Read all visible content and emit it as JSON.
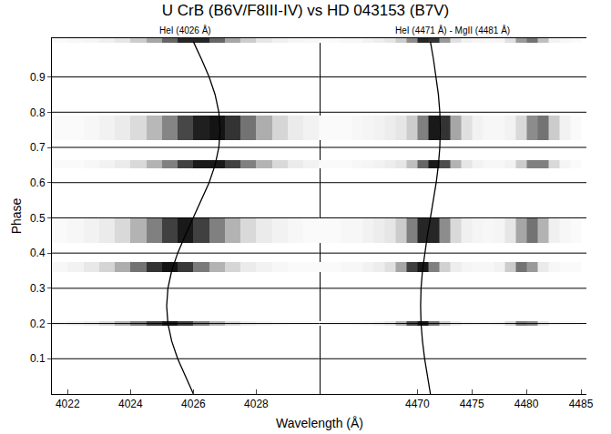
{
  "chart_data": {
    "type": "heatmap",
    "title": "U CrB (B6V/F8III-IV) vs HD 043153 (B7V)",
    "y_label": "Phase",
    "x_label": "Wavelength (Å)",
    "ylim": [
      0,
      1.01
    ],
    "yticks": [
      0.1,
      0.2,
      0.3,
      0.4,
      0.5,
      0.6,
      0.7,
      0.8,
      0.9
    ],
    "grid": true,
    "colors": [
      "#ffffff",
      "#000000"
    ],
    "zlim": [
      0,
      1
    ],
    "panels": [
      {
        "title": "HeI (4026 Å)",
        "xlim": [
          4021.5,
          4030
        ],
        "xticks": [
          4022,
          4024,
          4026,
          4028
        ],
        "x": [
          4021.5,
          4022,
          4022.5,
          4023,
          4023.5,
          4024,
          4024.5,
          4025,
          4025.5,
          4026,
          4026.5,
          4027,
          4027.5,
          4028,
          4028.5,
          4029,
          4029.5,
          4030
        ],
        "bands": [
          {
            "phase": [
              0.193,
              0.207
            ],
            "values": [
              0.03,
              0.05,
              0.08,
              0.15,
              0.3,
              0.5,
              0.75,
              0.9,
              0.75,
              0.5,
              0.3,
              0.15,
              0.08,
              0.05,
              0.03,
              0.02,
              0.02
            ]
          },
          {
            "phase": [
              0.345,
              0.375
            ],
            "values": [
              0.03,
              0.05,
              0.09,
              0.17,
              0.32,
              0.55,
              0.8,
              0.92,
              0.78,
              0.52,
              0.3,
              0.16,
              0.08,
              0.05,
              0.03,
              0.02,
              0.02
            ]
          },
          {
            "phase": [
              0.43,
              0.5
            ],
            "values": [
              0.02,
              0.03,
              0.05,
              0.08,
              0.15,
              0.3,
              0.5,
              0.75,
              0.9,
              0.75,
              0.5,
              0.3,
              0.15,
              0.08,
              0.05,
              0.03,
              0.02
            ]
          },
          {
            "phase": [
              0.64,
              0.665
            ],
            "values": [
              0.02,
              0.02,
              0.03,
              0.05,
              0.08,
              0.15,
              0.3,
              0.5,
              0.75,
              0.9,
              0.9,
              0.75,
              0.5,
              0.3,
              0.15,
              0.08,
              0.05
            ]
          },
          {
            "phase": [
              0.72,
              0.79
            ],
            "values": [
              0.02,
              0.02,
              0.03,
              0.05,
              0.08,
              0.14,
              0.28,
              0.48,
              0.72,
              0.88,
              0.92,
              0.8,
              0.55,
              0.32,
              0.16,
              0.08,
              0.05
            ]
          },
          {
            "phase": [
              0.997,
              1.01
            ],
            "values": [
              0.02,
              0.03,
              0.04,
              0.06,
              0.1,
              0.2,
              0.35,
              0.6,
              0.85,
              0.85,
              0.6,
              0.35,
              0.2,
              0.1,
              0.06,
              0.04,
              0.03
            ]
          }
        ],
        "curve": {
          "color": "#000000",
          "phase": [
            0,
            0.05,
            0.1,
            0.15,
            0.2,
            0.25,
            0.3,
            0.35,
            0.4,
            0.45,
            0.5,
            0.55,
            0.6,
            0.65,
            0.7,
            0.75,
            0.8,
            0.85,
            0.9,
            0.95,
            1
          ],
          "x": [
            4026.0,
            4025.74,
            4025.5,
            4025.31,
            4025.19,
            4025.15,
            4025.19,
            4025.31,
            4025.5,
            4025.74,
            4026.0,
            4026.26,
            4026.5,
            4026.69,
            4026.81,
            4026.85,
            4026.81,
            4026.69,
            4026.5,
            4026.26,
            4026.0
          ]
        }
      },
      {
        "title": "HeI (4471 Å) - MgII (4481 Å)",
        "xlim": [
          4461,
          4485.5
        ],
        "xticks": [
          4470,
          4475,
          4480,
          4485
        ],
        "x": [
          4461,
          4462,
          4463,
          4464,
          4465,
          4466,
          4467,
          4468,
          4469,
          4470,
          4471,
          4472,
          4473,
          4474,
          4475,
          4476,
          4477,
          4478,
          4479,
          4480,
          4481,
          4482,
          4483,
          4484,
          4485
        ],
        "bands": [
          {
            "phase": [
              0.193,
              0.207
            ],
            "values": [
              0.02,
              0.02,
              0.02,
              0.03,
              0.04,
              0.06,
              0.1,
              0.3,
              0.7,
              0.9,
              0.55,
              0.2,
              0.08,
              0.04,
              0.03,
              0.03,
              0.04,
              0.15,
              0.5,
              0.45,
              0.1,
              0.03,
              0.02,
              0.02
            ]
          },
          {
            "phase": [
              0.345,
              0.375
            ],
            "values": [
              0.02,
              0.02,
              0.03,
              0.03,
              0.05,
              0.07,
              0.12,
              0.35,
              0.75,
              0.9,
              0.5,
              0.18,
              0.07,
              0.04,
              0.03,
              0.03,
              0.05,
              0.2,
              0.55,
              0.4,
              0.08,
              0.03,
              0.02,
              0.02
            ]
          },
          {
            "phase": [
              0.43,
              0.5
            ],
            "values": [
              0.02,
              0.02,
              0.03,
              0.03,
              0.05,
              0.07,
              0.1,
              0.2,
              0.5,
              0.85,
              0.85,
              0.45,
              0.15,
              0.06,
              0.04,
              0.03,
              0.04,
              0.1,
              0.35,
              0.55,
              0.3,
              0.06,
              0.03,
              0.02
            ]
          },
          {
            "phase": [
              0.64,
              0.665
            ],
            "values": [
              0.02,
              0.02,
              0.02,
              0.03,
              0.04,
              0.05,
              0.07,
              0.1,
              0.25,
              0.6,
              0.9,
              0.7,
              0.3,
              0.1,
              0.05,
              0.03,
              0.03,
              0.05,
              0.2,
              0.5,
              0.5,
              0.15,
              0.04,
              0.02
            ]
          },
          {
            "phase": [
              0.72,
              0.79
            ],
            "values": [
              0.02,
              0.02,
              0.02,
              0.03,
              0.04,
              0.05,
              0.07,
              0.1,
              0.2,
              0.5,
              0.9,
              0.8,
              0.35,
              0.12,
              0.05,
              0.03,
              0.03,
              0.05,
              0.15,
              0.45,
              0.55,
              0.2,
              0.05,
              0.02
            ]
          },
          {
            "phase": [
              0.997,
              1.01
            ],
            "values": [
              0.02,
              0.02,
              0.03,
              0.03,
              0.05,
              0.07,
              0.1,
              0.2,
              0.45,
              0.85,
              0.8,
              0.4,
              0.12,
              0.05,
              0.04,
              0.03,
              0.04,
              0.12,
              0.4,
              0.55,
              0.25,
              0.05,
              0.03,
              0.02
            ]
          }
        ],
        "curve": {
          "color": "#000000",
          "phase": [
            0,
            0.05,
            0.1,
            0.15,
            0.2,
            0.25,
            0.3,
            0.35,
            0.4,
            0.45,
            0.5,
            0.55,
            0.6,
            0.65,
            0.7,
            0.75,
            0.8,
            0.85,
            0.9,
            0.95,
            1
          ],
          "x": [
            4471.2,
            4470.92,
            4470.67,
            4470.47,
            4470.34,
            4470.3,
            4470.34,
            4470.47,
            4470.67,
            4470.92,
            4471.2,
            4471.48,
            4471.73,
            4471.93,
            4472.06,
            4472.1,
            4472.06,
            4471.93,
            4471.73,
            4471.48,
            4471.2
          ]
        }
      }
    ]
  }
}
